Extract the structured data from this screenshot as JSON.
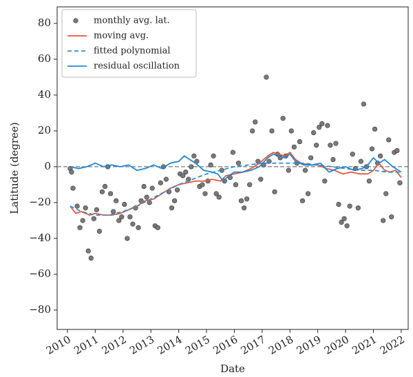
{
  "chart_data": {
    "type": "line",
    "xlabel": "Date",
    "ylabel": "Latitude (degree)",
    "xlim": [
      2009.63,
      2022.25
    ],
    "xticks": [
      2010,
      2011,
      2012,
      2013,
      2014,
      2015,
      2016,
      2017,
      2018,
      2019,
      2020,
      2021,
      2022
    ],
    "ylim": [
      -90.8,
      89.2
    ],
    "yticks": [
      {
        "value": -80,
        "label": "−80"
      },
      {
        "value": -60,
        "label": "−60"
      },
      {
        "value": -40,
        "label": "−40"
      },
      {
        "value": -20,
        "label": "−20"
      },
      0,
      20,
      40,
      60,
      80
    ],
    "legend": "upper left",
    "hline": {
      "value": 0,
      "color": "#555555"
    },
    "series": [
      {
        "name": "monthly avg. lat.",
        "type": "scatter",
        "color": "#7a7a7a",
        "x": [
          2010.1,
          2010.15,
          2010.2,
          2010.35,
          2010.45,
          2010.55,
          2010.65,
          2010.75,
          2010.85,
          2010.95,
          2011.05,
          2011.15,
          2011.25,
          2011.35,
          2011.45,
          2011.55,
          2011.65,
          2011.75,
          2011.85,
          2011.95,
          2012.05,
          2012.15,
          2012.25,
          2012.35,
          2012.45,
          2012.55,
          2012.65,
          2012.75,
          2012.85,
          2012.95,
          2013.05,
          2013.15,
          2013.25,
          2013.35,
          2013.45,
          2013.55,
          2013.65,
          2013.75,
          2013.85,
          2013.95,
          2014.05,
          2014.15,
          2014.25,
          2014.35,
          2014.45,
          2014.55,
          2014.65,
          2014.75,
          2014.85,
          2014.95,
          2015.05,
          2015.15,
          2015.25,
          2015.35,
          2015.45,
          2015.55,
          2015.65,
          2015.85,
          2015.95,
          2016.05,
          2016.15,
          2016.25,
          2016.35,
          2016.45,
          2016.55,
          2016.65,
          2016.75,
          2016.85,
          2016.95,
          2017.05,
          2017.15,
          2017.25,
          2017.35,
          2017.45,
          2017.55,
          2017.65,
          2017.75,
          2017.85,
          2017.95,
          2018.05,
          2018.15,
          2018.25,
          2018.35,
          2018.45,
          2018.55,
          2018.65,
          2018.75,
          2018.85,
          2018.95,
          2019.05,
          2019.15,
          2019.25,
          2019.35,
          2019.45,
          2019.55,
          2019.65,
          2019.75,
          2019.85,
          2019.95,
          2020.05,
          2020.15,
          2020.25,
          2020.35,
          2020.45,
          2020.55,
          2020.65,
          2020.75,
          2020.85,
          2020.95,
          2021.05,
          2021.15,
          2021.25,
          2021.35,
          2021.45,
          2021.55,
          2021.65,
          2021.75,
          2021.85,
          2021.95
        ],
        "values": [
          -1,
          -3,
          -12,
          -22,
          -34,
          -30,
          -23,
          -47,
          -51,
          -29,
          -24,
          -36,
          -14,
          -11,
          0,
          -15,
          -25,
          -19,
          -30,
          -28,
          -21,
          -40,
          -28,
          -32,
          -23,
          -34,
          -19,
          -11,
          -17,
          -20,
          -12,
          -33,
          -34,
          -9,
          0,
          -7,
          -14,
          -23,
          -19,
          -13,
          -4,
          -5,
          -3,
          -7,
          0,
          6,
          3,
          -11,
          -10,
          -15,
          -8,
          1,
          6,
          -15,
          -17,
          -2,
          -8,
          -6,
          8,
          -10,
          2,
          -19,
          -23,
          -18,
          -10,
          20,
          25,
          3,
          -7,
          1,
          50,
          3,
          20,
          -14,
          7,
          5,
          27,
          6,
          -2,
          20,
          11,
          2,
          14,
          -19,
          -2,
          -15,
          5,
          19,
          12,
          22,
          24,
          -8,
          23,
          12,
          4,
          13,
          -21,
          -31,
          -29,
          -33,
          -22,
          7,
          -1,
          -23,
          3,
          35,
          0,
          -8,
          10,
          21,
          2,
          6,
          -30,
          -15,
          15,
          -28,
          8,
          9,
          -9
        ]
      },
      {
        "name": "moving avg.",
        "type": "line",
        "color": "#e8553a",
        "x": [
          2010.1,
          2010.3,
          2010.5,
          2010.8,
          2011.0,
          2011.3,
          2011.6,
          2011.9,
          2012.2,
          2012.5,
          2012.8,
          2013.1,
          2013.4,
          2013.7,
          2014.0,
          2014.3,
          2014.6,
          2014.9,
          2015.2,
          2015.5,
          2015.7,
          2016.0,
          2016.3,
          2016.6,
          2016.9,
          2017.2,
          2017.4,
          2017.6,
          2017.8,
          2018.0,
          2018.2,
          2018.4,
          2018.7,
          2019.0,
          2019.3,
          2019.6,
          2019.9,
          2020.2,
          2020.5,
          2020.8,
          2021.0,
          2021.2,
          2021.4,
          2021.6,
          2021.8,
          2022.0
        ],
        "values": [
          -22,
          -26,
          -25,
          -27,
          -26,
          -27,
          -27,
          -26,
          -24,
          -22,
          -19,
          -18,
          -15,
          -12,
          -10,
          -9,
          -8,
          -8,
          -7,
          -8,
          -5,
          -4,
          -3,
          -1,
          2,
          6,
          8,
          7,
          6,
          8,
          4,
          2,
          1,
          1,
          -1,
          -2,
          -4,
          -3,
          -4,
          -4,
          -2,
          2,
          -2,
          -3,
          -2,
          -6
        ]
      },
      {
        "name": "fitted polynomial",
        "type": "line",
        "dashed": true,
        "color": "#2b8fd6",
        "x": [
          2010.1,
          2010.5,
          2011.0,
          2011.5,
          2012.0,
          2012.5,
          2013.0,
          2013.5,
          2014.0,
          2014.5,
          2015.0,
          2015.5,
          2016.0,
          2016.5,
          2017.0,
          2017.5,
          2018.0,
          2018.5,
          2019.0,
          2019.5,
          2020.0,
          2020.5,
          2021.0,
          2021.5,
          2022.0
        ],
        "values": [
          -22,
          -25,
          -27,
          -27,
          -25,
          -22,
          -18,
          -14,
          -10,
          -7,
          -4,
          -2,
          0,
          1,
          2,
          2,
          2,
          2,
          1,
          0,
          -1,
          -2,
          -2,
          -3,
          -3
        ]
      },
      {
        "name": "residual oscillation",
        "type": "line",
        "color": "#1f88d8",
        "x": [
          2010.1,
          2010.4,
          2010.7,
          2011.0,
          2011.3,
          2011.6,
          2011.9,
          2012.2,
          2012.5,
          2012.8,
          2013.1,
          2013.4,
          2013.7,
          2014.0,
          2014.2,
          2014.4,
          2014.6,
          2014.9,
          2015.2,
          2015.4,
          2015.6,
          2015.8,
          2016.0,
          2016.3,
          2016.6,
          2016.9,
          2017.2,
          2017.4,
          2017.6,
          2017.8,
          2018.0,
          2018.2,
          2018.5,
          2018.8,
          2019.1,
          2019.4,
          2019.7,
          2020.0,
          2020.3,
          2020.6,
          2020.8,
          2021.0,
          2021.2,
          2021.4,
          2021.7,
          2022.0
        ],
        "values": [
          0,
          -1,
          0,
          2,
          0,
          1,
          0,
          1,
          -2,
          -1,
          1,
          -1,
          2,
          3,
          6,
          4,
          2,
          -2,
          -3,
          -4,
          -8,
          -5,
          -3,
          -3,
          -2,
          0,
          5,
          7,
          6,
          5,
          7,
          3,
          1,
          1,
          2,
          -3,
          -1,
          0,
          -2,
          -1,
          1,
          5,
          2,
          4,
          0,
          -3
        ]
      }
    ]
  }
}
